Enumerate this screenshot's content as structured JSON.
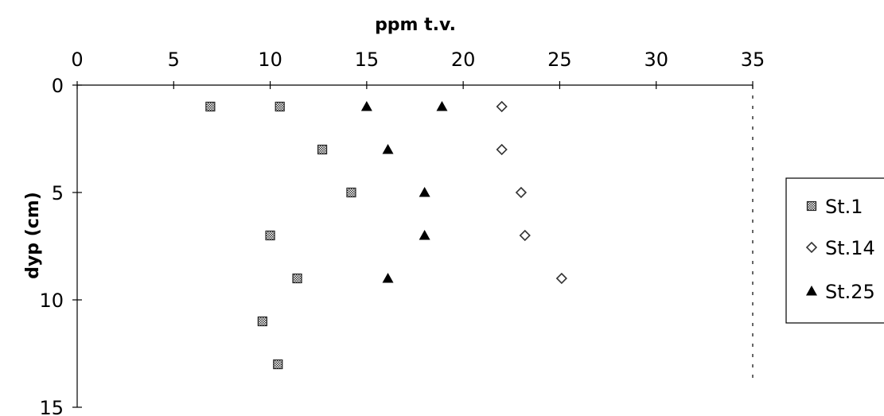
{
  "chart_data": {
    "type": "scatter",
    "xlabel": "ppm t.v.",
    "ylabel": "dyp (cm)",
    "xlim": [
      0,
      35
    ],
    "ylim": [
      0,
      15
    ],
    "y_inverted": true,
    "x_axis_position": "top",
    "xticks": [
      0,
      5,
      10,
      15,
      20,
      25,
      30,
      35
    ],
    "yticks": [
      0,
      5,
      10,
      15
    ],
    "grid": false,
    "legend_position": "right",
    "series": [
      {
        "name": "St.1",
        "marker": "square-hatched",
        "color": "#404040",
        "points": [
          {
            "x": 6.9,
            "y": 1
          },
          {
            "x": 10.5,
            "y": 1
          },
          {
            "x": 12.7,
            "y": 3
          },
          {
            "x": 14.2,
            "y": 5
          },
          {
            "x": 10.0,
            "y": 7
          },
          {
            "x": 11.4,
            "y": 9
          },
          {
            "x": 9.6,
            "y": 11
          },
          {
            "x": 10.4,
            "y": 13
          }
        ]
      },
      {
        "name": "St.14",
        "marker": "diamond-open",
        "color": "#404040",
        "points": [
          {
            "x": 22.0,
            "y": 1
          },
          {
            "x": 22.0,
            "y": 3
          },
          {
            "x": 23.0,
            "y": 5
          },
          {
            "x": 23.2,
            "y": 7
          },
          {
            "x": 25.1,
            "y": 9
          }
        ]
      },
      {
        "name": "St.25",
        "marker": "triangle-filled",
        "color": "#000000",
        "points": [
          {
            "x": 15.0,
            "y": 1
          },
          {
            "x": 18.9,
            "y": 1
          },
          {
            "x": 16.1,
            "y": 3
          },
          {
            "x": 18.0,
            "y": 5
          },
          {
            "x": 18.0,
            "y": 7
          },
          {
            "x": 16.1,
            "y": 9
          }
        ]
      }
    ]
  }
}
